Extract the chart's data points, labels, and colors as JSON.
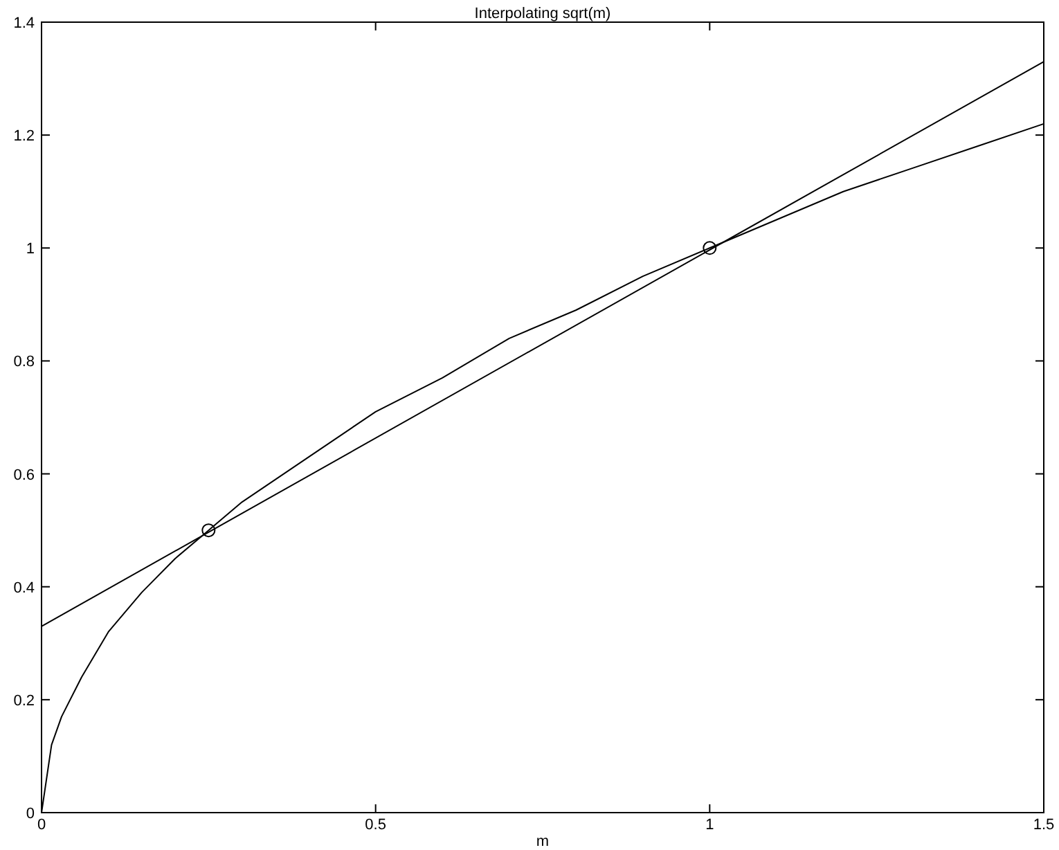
{
  "chart_data": {
    "type": "line",
    "title": "Interpolating sqrt(m)",
    "xlabel": "m",
    "xlim": [
      0,
      1.5
    ],
    "xticks": [
      0,
      0.5,
      1,
      1.5
    ],
    "ylim": [
      0,
      1.4
    ],
    "yticks": [
      0,
      0.2,
      0.4,
      0.6,
      0.8,
      1,
      1.2,
      1.4
    ],
    "series": [
      {
        "color": "#000000",
        "marker": "none",
        "x": [
          0,
          0.015,
          0.03,
          0.06,
          0.1,
          0.15,
          0.2,
          0.25,
          0.3,
          0.4,
          0.5,
          0.6,
          0.7,
          0.8,
          0.9,
          1,
          1.1,
          1.2,
          1.3,
          1.4,
          1.5
        ],
        "values": [
          0,
          0.12,
          0.17,
          0.24,
          0.32,
          0.39,
          0.45,
          0.5,
          0.55,
          0.63,
          0.71,
          0.77,
          0.84,
          0.89,
          0.95,
          1,
          1.05,
          1.1,
          1.14,
          1.18,
          1.22
        ]
      },
      {
        "color": "#000000",
        "marker": "none",
        "x": [
          0,
          1.5
        ],
        "values": [
          0.33,
          1.33
        ]
      },
      {
        "type": "scatter",
        "color": "#000000",
        "marker": "circle",
        "x": [
          0.25,
          1
        ],
        "values": [
          0.5,
          1
        ]
      }
    ]
  }
}
